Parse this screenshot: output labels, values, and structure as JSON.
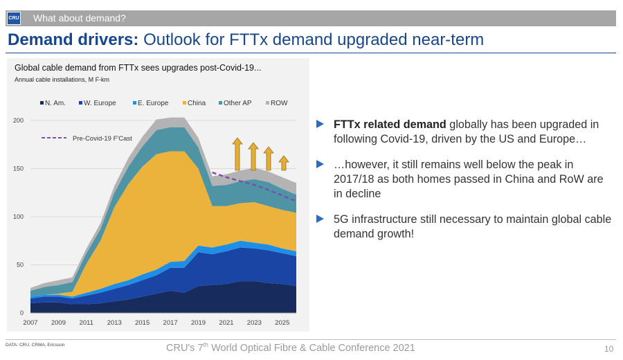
{
  "header": {
    "logo_text": "CRU",
    "section_label": "What about demand?",
    "title_bold": "Demand drivers:",
    "title_rest": " Outlook for FTTx demand upgraded near-term"
  },
  "colors": {
    "N. Am.": "#172b5c",
    "W. Europe": "#1b45a5",
    "E. Europe": "#1f8ee6",
    "China": "#ecb33c",
    "Other AP": "#4f94a5",
    "ROW": "#b3b3b3",
    "forecast_line": "#7b4fae",
    "arrow": "#e3ae38",
    "accent": "#17468a"
  },
  "chart_data": {
    "type": "area",
    "stacked": true,
    "title": "Global cable demand from FTTx sees upgrades post-Covid-19...",
    "subtitle": "Annual cable installations, M F-km",
    "x": [
      2007,
      2008,
      2009,
      2010,
      2011,
      2012,
      2013,
      2014,
      2015,
      2016,
      2017,
      2018,
      2019,
      2020,
      2021,
      2022,
      2023,
      2024,
      2025,
      2026
    ],
    "x_ticks": [
      "2007",
      "2009",
      "2011",
      "2013",
      "2015",
      "2017",
      "2019",
      "2021",
      "2023",
      "2025"
    ],
    "ylim": [
      0,
      200
    ],
    "y_ticks": [
      "0",
      "50",
      "100",
      "150",
      "200"
    ],
    "legend_position": "top",
    "series": [
      {
        "name": "N. Am.",
        "values": [
          10,
          11,
          11,
          9,
          9,
          10,
          12,
          14,
          17,
          20,
          23,
          21,
          28,
          29,
          30,
          33,
          33,
          31,
          30,
          28
        ]
      },
      {
        "name": "W. Europe",
        "values": [
          5,
          6,
          6,
          6,
          9,
          11,
          13,
          15,
          17,
          19,
          24,
          26,
          35,
          32,
          34,
          35,
          34,
          34,
          32,
          31
        ]
      },
      {
        "name": "E. Europe",
        "values": [
          2,
          2,
          2,
          2,
          3,
          4,
          5,
          5,
          6,
          6,
          6,
          7,
          7,
          7,
          7,
          7,
          6,
          6,
          5,
          5
        ]
      },
      {
        "name": "China",
        "values": [
          0,
          0,
          1,
          5,
          30,
          50,
          80,
          100,
          112,
          120,
          115,
          114,
          80,
          43,
          40,
          39,
          42,
          40,
          40,
          40
        ]
      },
      {
        "name": "Other AP",
        "values": [
          6,
          8,
          9,
          10,
          11,
          12,
          15,
          18,
          21,
          25,
          25,
          25,
          22,
          21,
          22,
          23,
          24,
          25,
          22,
          19
        ]
      },
      {
        "name": "ROW",
        "values": [
          3,
          4,
          5,
          5,
          5,
          6,
          7,
          9,
          10,
          11,
          10,
          10,
          10,
          10,
          11,
          11,
          12,
          11,
          12,
          12
        ]
      }
    ],
    "forecast": {
      "name": "Pre-Covid-19 F'Cast",
      "x": [
        2020,
        2021,
        2022,
        2023,
        2024,
        2025,
        2026
      ],
      "values": [
        146,
        141,
        137,
        133,
        128,
        122,
        116
      ]
    },
    "upgrade_arrows": 4
  },
  "bullets": [
    {
      "bold": "FTTx related demand",
      "text": " globally has been upgraded in following Covid-19, driven by the US and Europe…"
    },
    {
      "bold": "",
      "text": "…however, it still remains well below the peak in 2017/18 as both homes passed in China and RoW are in decline"
    },
    {
      "bold": "",
      "text": "5G infrastructure still necessary to maintain global cable demand growth!"
    }
  ],
  "footer": {
    "source": "DATA: CRU, CRMA, Ericsson",
    "conference_pre": "CRU's 7",
    "conference_sup": "th",
    "conference_post": " World Optical Fibre & Cable Conference 2021",
    "page_number": "10"
  }
}
